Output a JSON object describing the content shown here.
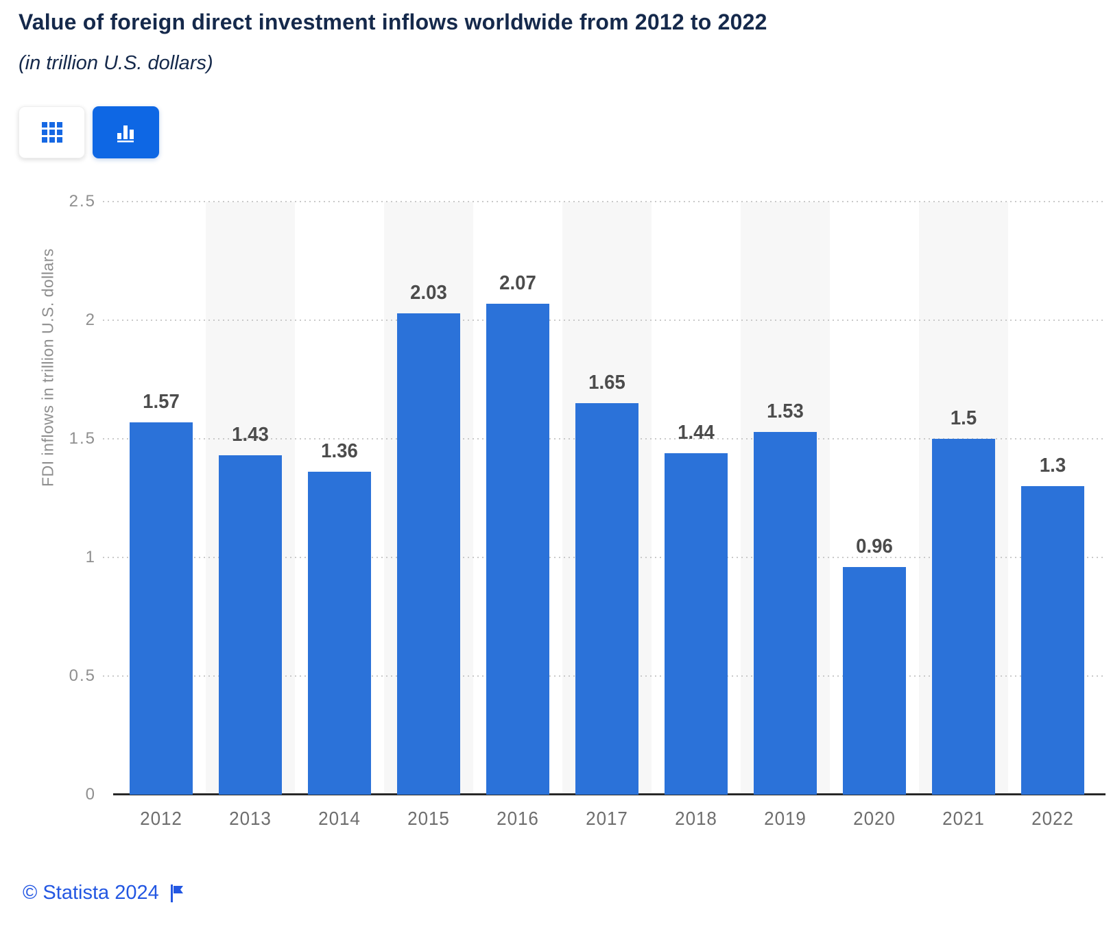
{
  "header": {
    "title": "Value of foreign direct investment inflows worldwide from 2012 to 2022",
    "subtitle": "(in trillion U.S. dollars)"
  },
  "toolbar": {
    "table_view_button": {
      "icon": "grid-icon",
      "active": false
    },
    "chart_view_button": {
      "icon": "bar-chart-icon",
      "active": true
    }
  },
  "chart_data": {
    "type": "bar",
    "title": "Value of foreign direct investment inflows worldwide from 2012 to 2022",
    "subtitle": "(in trillion U.S. dollars)",
    "categories": [
      "2012",
      "2013",
      "2014",
      "2015",
      "2016",
      "2017",
      "2018",
      "2019",
      "2020",
      "2021",
      "2022"
    ],
    "values": [
      1.57,
      1.43,
      1.36,
      2.03,
      2.07,
      1.65,
      1.44,
      1.53,
      0.96,
      1.5,
      1.3
    ],
    "value_labels": [
      "1.57",
      "1.43",
      "1.36",
      "2.03",
      "2.07",
      "1.65",
      "1.44",
      "1.53",
      "0.96",
      "1.5",
      "1.3"
    ],
    "xlabel": "",
    "ylabel": "FDI inflows in trillion U.S. dollars",
    "ylim": [
      0,
      2.5
    ],
    "yticks": [
      "0",
      "0.5",
      "1",
      "1.5",
      "2",
      "2.5"
    ],
    "grid": "horizontal-dotted",
    "legend": "none",
    "striped_columns": [
      "2013",
      "2015",
      "2017",
      "2019",
      "2021"
    ],
    "bar_color": "#2b72d9",
    "stripe_color": "#f7f7f7"
  },
  "footer": {
    "copyright": "© Statista 2024",
    "flag_icon": "flag-icon"
  },
  "colors": {
    "accent_blue": "#0e67e4",
    "title_navy": "#15294b",
    "footer_blue": "#2357e2"
  }
}
